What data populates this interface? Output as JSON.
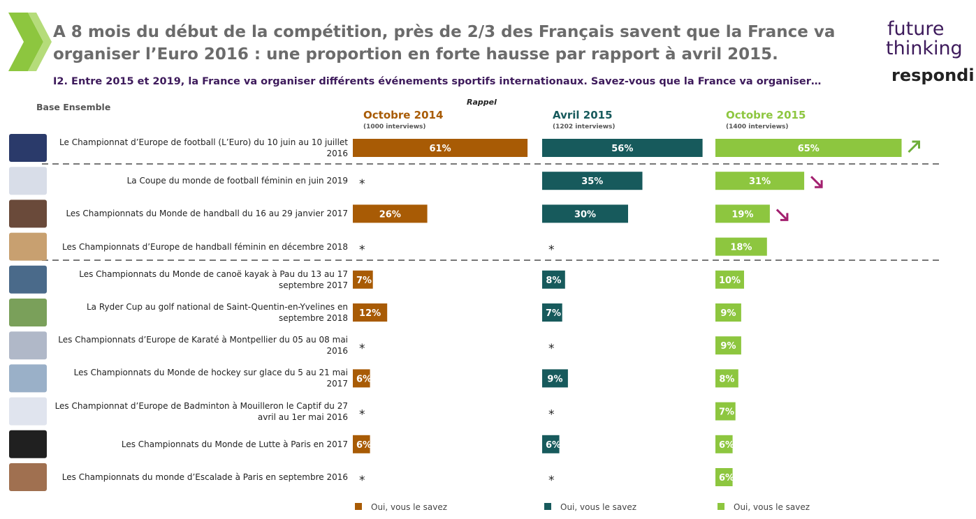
{
  "title_lines": [
    "A 8 mois du début de la compétition, près de 2/3 des Français savent que la France va",
    "organiser l’Euro 2016 : une proportion en forte hausse par rapport à avril 2015."
  ],
  "subtitle": "I2. Entre 2015 et 2019, la France va organiser différents événements sportifs internationaux. Savez-vous que la France va organiser…",
  "logo": {
    "line1": "future",
    "line2": "thinking",
    "line3": "respondi"
  },
  "base_label": "Base Ensemble",
  "chart_data": {
    "type": "bar",
    "annotation": "Rappel",
    "categories": [
      "Le Championnat d’Europe de football (L’Euro) du 10 juin au 10 juillet 2016",
      "La Coupe du monde de football féminin en juin 2019",
      "Les Championnats du Monde de handball du 16 au 29 janvier 2017",
      "Les Championnats d’Europe de handball féminin en décembre 2018",
      "Les Championnats du Monde de canoë kayak à Pau du 13 au 17 septembre 2017",
      "La Ryder Cup  au golf national de Saint-Quentin-en-Yvelines en septembre 2018",
      "Les Championnats d’Europe de Karaté à Montpellier du 05 au 08 mai 2016",
      "Les Championnats du Monde de hockey sur glace du 5 au 21 mai 2017",
      "Les Championnat d’Europe de Badminton à Mouilleron le Captif du 27 avril au 1er mai 2016",
      "Les Championnats du Monde de Lutte à Paris en 2017",
      "Les Championnats du monde d’Escalade à Paris en septembre 2016"
    ],
    "xlim": [
      0,
      100
    ],
    "legend_label": "Oui, vous le savez",
    "series": [
      {
        "name": "Octobre 2014",
        "subtitle": "(1000 interviews)",
        "color": "#a85b05",
        "values": [
          61,
          null,
          26,
          null,
          7,
          12,
          null,
          6,
          null,
          6,
          null
        ],
        "value_labels": [
          "61%",
          "*",
          "26%",
          "*",
          "7%",
          "12%",
          "*",
          "6%",
          "*",
          "6%",
          "*"
        ]
      },
      {
        "name": "Avril 2015",
        "subtitle": "(1202 interviews)",
        "color": "#175a5c",
        "values": [
          56,
          35,
          30,
          null,
          8,
          7,
          null,
          9,
          null,
          6,
          null
        ],
        "value_labels": [
          "56%",
          "35%",
          "30%",
          "*",
          "8%",
          "7%",
          "*",
          "9%",
          "*",
          "6%",
          "*"
        ]
      },
      {
        "name": "Octobre 2015",
        "subtitle": "(1400 interviews)",
        "color": "#8dc63f",
        "values": [
          65,
          31,
          19,
          18,
          10,
          9,
          9,
          8,
          7,
          6,
          6
        ],
        "value_labels": [
          "65%",
          "31%",
          "19%",
          "18%",
          "10%",
          "9%",
          "9%",
          "8%",
          "7%",
          "6%",
          "6%"
        ],
        "trends": [
          "up",
          "down",
          "down",
          null,
          null,
          null,
          null,
          null,
          null,
          null,
          null
        ],
        "trend_colors": {
          "up": "#6fae3a",
          "down": "#a3206f"
        }
      }
    ]
  }
}
